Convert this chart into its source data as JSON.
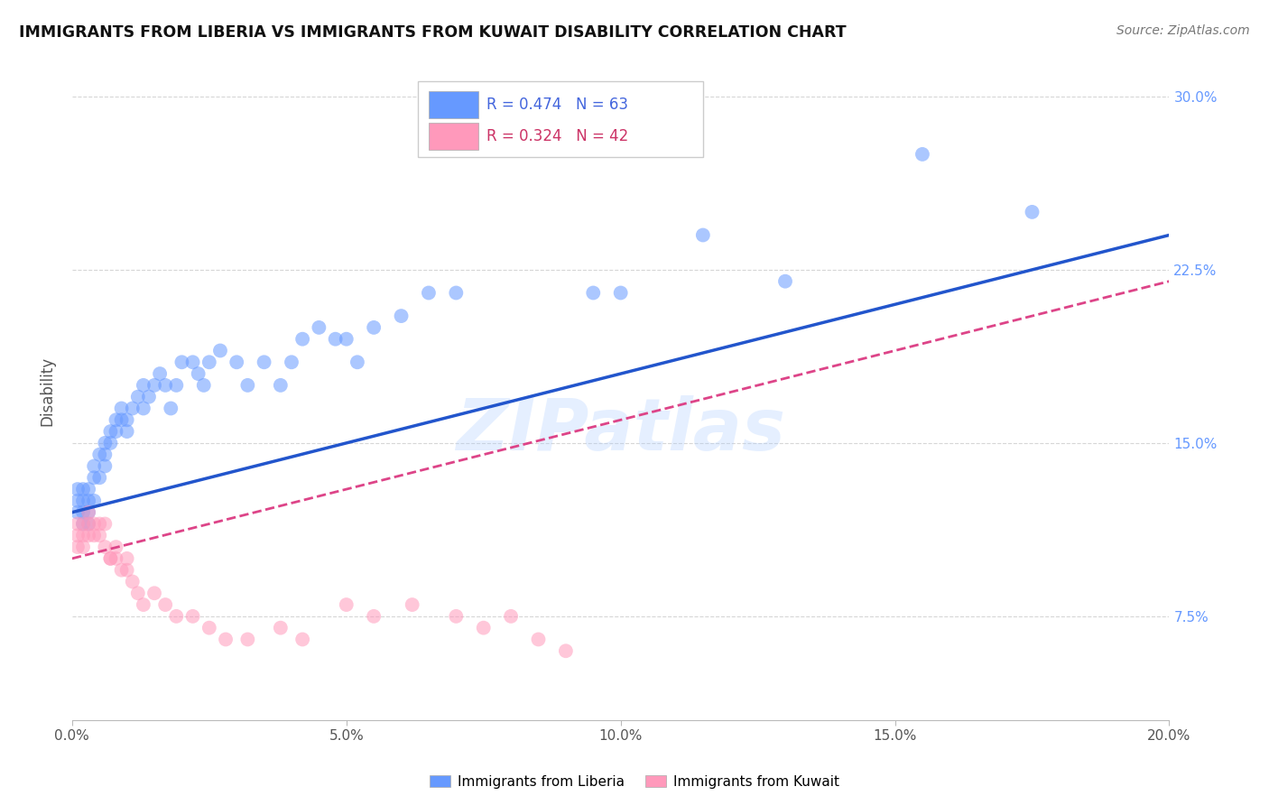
{
  "title": "IMMIGRANTS FROM LIBERIA VS IMMIGRANTS FROM KUWAIT DISABILITY CORRELATION CHART",
  "source": "Source: ZipAtlas.com",
  "ylabel": "Disability",
  "xlabel_ticks": [
    "0.0%",
    "5.0%",
    "10.0%",
    "15.0%",
    "20.0%"
  ],
  "ylabel_ticks": [
    "7.5%",
    "15.0%",
    "22.5%",
    "30.0%"
  ],
  "xlim": [
    0.0,
    0.2
  ],
  "ylim": [
    0.03,
    0.315
  ],
  "legend1_R": "0.474",
  "legend1_N": "63",
  "legend2_R": "0.324",
  "legend2_N": "42",
  "color_blue": "#6699ff",
  "color_pink": "#ff99bb",
  "color_line_blue": "#2255cc",
  "color_line_pink": "#dd4488",
  "background": "#ffffff",
  "grid_color": "#cccccc",
  "liberia_x": [
    0.001,
    0.001,
    0.001,
    0.002,
    0.002,
    0.002,
    0.002,
    0.003,
    0.003,
    0.003,
    0.003,
    0.004,
    0.004,
    0.004,
    0.005,
    0.005,
    0.006,
    0.006,
    0.006,
    0.007,
    0.007,
    0.008,
    0.008,
    0.009,
    0.009,
    0.01,
    0.01,
    0.011,
    0.012,
    0.013,
    0.013,
    0.014,
    0.015,
    0.016,
    0.017,
    0.018,
    0.019,
    0.02,
    0.022,
    0.023,
    0.024,
    0.025,
    0.027,
    0.03,
    0.032,
    0.035,
    0.038,
    0.04,
    0.042,
    0.045,
    0.048,
    0.05,
    0.052,
    0.055,
    0.06,
    0.065,
    0.07,
    0.095,
    0.1,
    0.115,
    0.13,
    0.155,
    0.175
  ],
  "liberia_y": [
    0.13,
    0.125,
    0.12,
    0.13,
    0.125,
    0.12,
    0.115,
    0.13,
    0.125,
    0.12,
    0.115,
    0.14,
    0.135,
    0.125,
    0.145,
    0.135,
    0.15,
    0.145,
    0.14,
    0.155,
    0.15,
    0.16,
    0.155,
    0.165,
    0.16,
    0.16,
    0.155,
    0.165,
    0.17,
    0.175,
    0.165,
    0.17,
    0.175,
    0.18,
    0.175,
    0.165,
    0.175,
    0.185,
    0.185,
    0.18,
    0.175,
    0.185,
    0.19,
    0.185,
    0.175,
    0.185,
    0.175,
    0.185,
    0.195,
    0.2,
    0.195,
    0.195,
    0.185,
    0.2,
    0.205,
    0.215,
    0.215,
    0.215,
    0.215,
    0.24,
    0.22,
    0.275,
    0.25
  ],
  "kuwait_x": [
    0.001,
    0.001,
    0.001,
    0.002,
    0.002,
    0.002,
    0.003,
    0.003,
    0.003,
    0.004,
    0.004,
    0.005,
    0.005,
    0.006,
    0.006,
    0.007,
    0.007,
    0.008,
    0.008,
    0.009,
    0.01,
    0.01,
    0.011,
    0.012,
    0.013,
    0.015,
    0.017,
    0.019,
    0.022,
    0.025,
    0.028,
    0.032,
    0.038,
    0.042,
    0.05,
    0.055,
    0.062,
    0.07,
    0.075,
    0.08,
    0.085,
    0.09
  ],
  "kuwait_y": [
    0.115,
    0.11,
    0.105,
    0.115,
    0.11,
    0.105,
    0.12,
    0.115,
    0.11,
    0.115,
    0.11,
    0.115,
    0.11,
    0.115,
    0.105,
    0.1,
    0.1,
    0.105,
    0.1,
    0.095,
    0.1,
    0.095,
    0.09,
    0.085,
    0.08,
    0.085,
    0.08,
    0.075,
    0.075,
    0.07,
    0.065,
    0.065,
    0.07,
    0.065,
    0.08,
    0.075,
    0.08,
    0.075,
    0.07,
    0.075,
    0.065,
    0.06
  ]
}
